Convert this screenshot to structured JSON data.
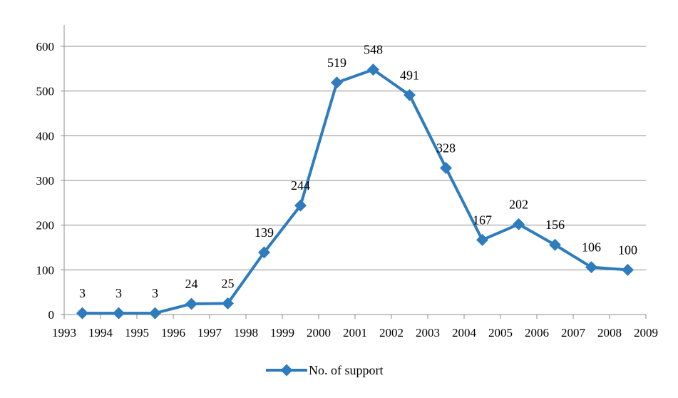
{
  "chart_data": {
    "type": "line",
    "title": "",
    "xlabel": "",
    "ylabel": "",
    "x": [
      "1993",
      "1994",
      "1995",
      "1996",
      "1997",
      "1998",
      "1999",
      "2000",
      "2001",
      "2002",
      "2003",
      "2004",
      "2005",
      "2006",
      "2007",
      "2008"
    ],
    "x_tick_labels": [
      "1993",
      "1994",
      "1995",
      "1996",
      "1997",
      "1998",
      "1999",
      "2000",
      "2001",
      "2002",
      "2003",
      "2004",
      "2005",
      "2006",
      "2007",
      "2008",
      "2009"
    ],
    "y_tick_labels": [
      "0",
      "100",
      "200",
      "300",
      "400",
      "500",
      "600"
    ],
    "ylim": [
      0,
      600
    ],
    "grid": "horizontal",
    "legend_position": "bottom",
    "series": [
      {
        "name": "No. of support",
        "values": [
          3,
          3,
          3,
          24,
          25,
          139,
          244,
          519,
          548,
          491,
          328,
          167,
          202,
          156,
          106,
          100
        ],
        "color": "#2e7cbd",
        "marker": "diamond",
        "data_labels": [
          "3",
          "3",
          "3",
          "24",
          "25",
          "139",
          "244",
          "519",
          "548",
          "491",
          "328",
          "167",
          "202",
          "156",
          "106",
          "100"
        ]
      }
    ]
  }
}
